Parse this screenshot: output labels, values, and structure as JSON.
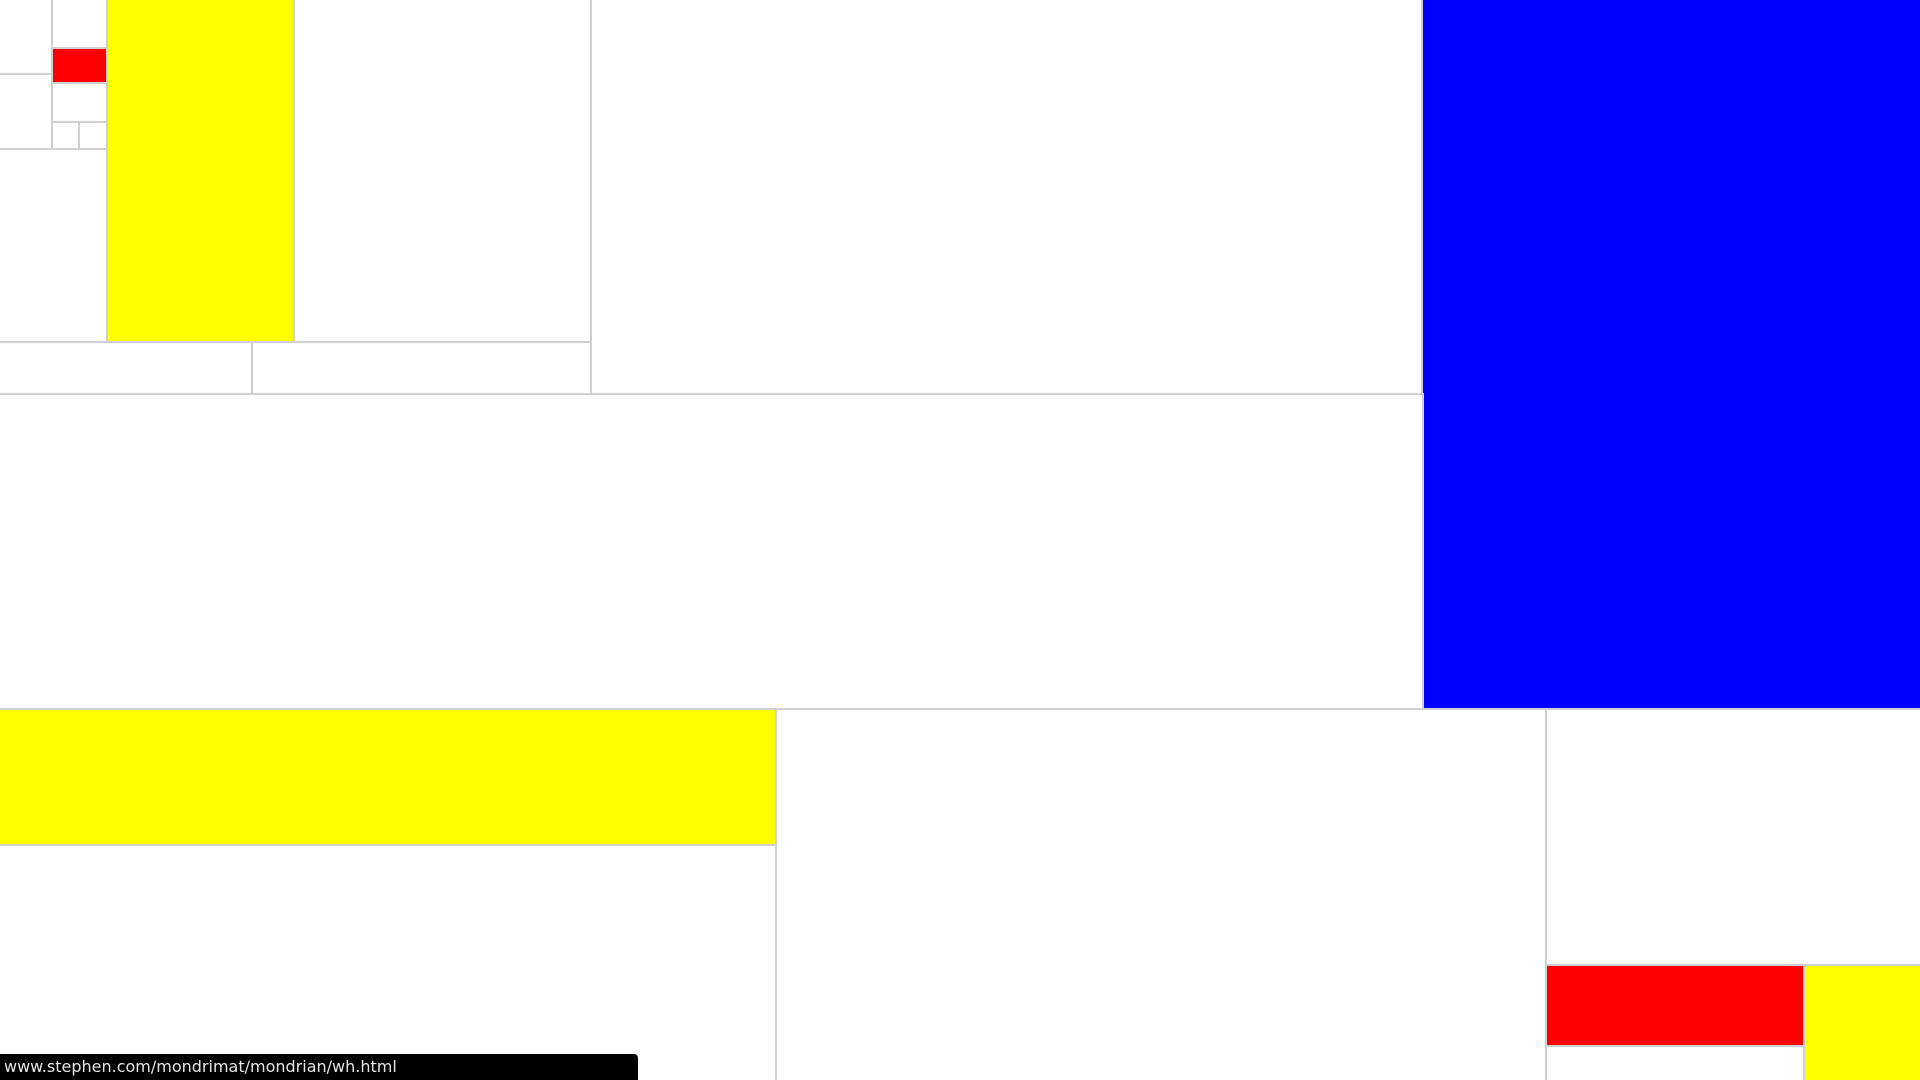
{
  "palette": {
    "red": "#ff0000",
    "yellow": "#ffff00",
    "blue": "#0000ff",
    "white": "#ffffff",
    "grid": "#d0d0d0"
  },
  "status_bar": {
    "url": "www.stephen.com/mondrimat/mondrian/wh.html"
  }
}
